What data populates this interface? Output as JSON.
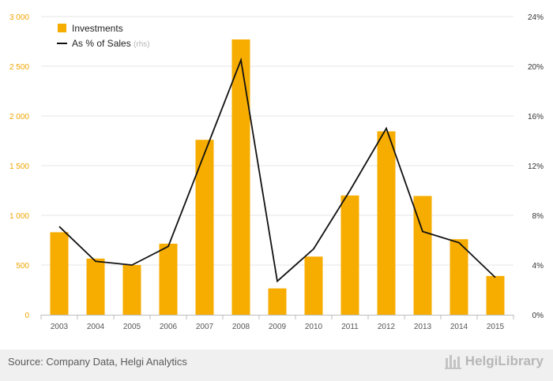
{
  "chart_data": {
    "type": "bar",
    "categories": [
      "2003",
      "2004",
      "2005",
      "2006",
      "2007",
      "2008",
      "2009",
      "2010",
      "2011",
      "2012",
      "2013",
      "2014",
      "2015"
    ],
    "series": [
      {
        "name": "Investments",
        "type": "bar",
        "axis": "left",
        "values": [
          830,
          565,
          500,
          715,
          1760,
          2770,
          265,
          585,
          1200,
          1845,
          1195,
          760,
          390
        ]
      },
      {
        "name": "As % of Sales",
        "name_suffix": "(rhs)",
        "type": "line",
        "axis": "right",
        "values": [
          7.1,
          4.3,
          4.0,
          5.5,
          13.0,
          20.5,
          2.7,
          5.3,
          10.0,
          15.0,
          6.7,
          5.8,
          3.0
        ]
      }
    ],
    "y_left": {
      "ylim": [
        0,
        3000
      ],
      "ticks": [
        0,
        500,
        1000,
        1500,
        2000,
        2500,
        3000
      ],
      "tick_labels": [
        "0",
        "500",
        "1 000",
        "1 500",
        "2 000",
        "2 500",
        "3 000"
      ]
    },
    "y_right": {
      "ylim": [
        0,
        24
      ],
      "ticks": [
        0,
        4,
        8,
        12,
        16,
        20,
        24
      ],
      "tick_labels": [
        "0%",
        "4%",
        "8%",
        "12%",
        "16%",
        "20%",
        "24%"
      ]
    },
    "grid": true,
    "legend_position": "top-left",
    "colors": {
      "bar": "#f7ac00",
      "line": "#111111",
      "left_axis_text": "#f0a500",
      "grid": "#e6e6e6"
    }
  },
  "footer": {
    "source": "Source: Company Data, Helgi Analytics",
    "brand": "HelgiLibrary"
  }
}
